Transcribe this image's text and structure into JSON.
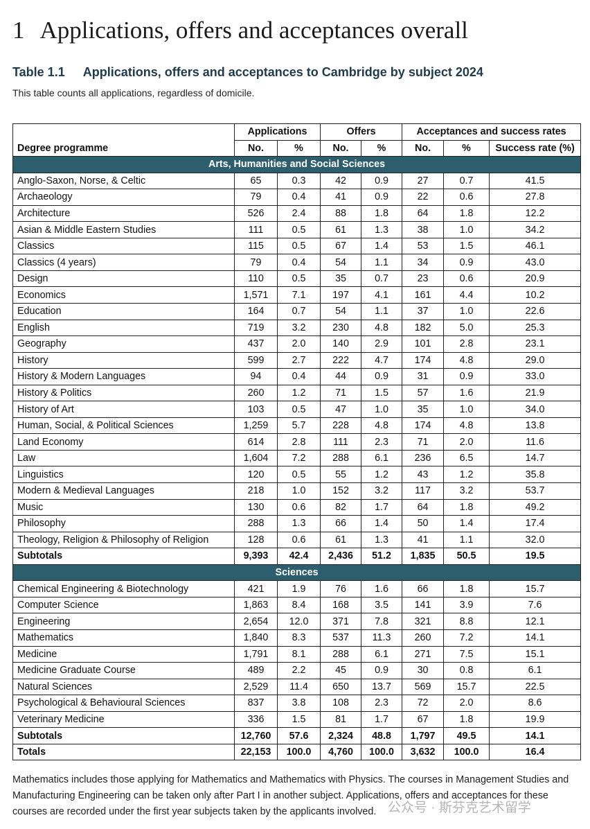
{
  "heading": {
    "number": "1",
    "text": "Applications, offers and acceptances overall"
  },
  "table_title": {
    "number": "Table 1.1",
    "text": "Applications, offers and acceptances to Cambridge by subject 2024"
  },
  "subtitle": "This table counts all applications, regardless of domicile.",
  "table": {
    "label_header": "Degree programme",
    "groups": [
      "Applications",
      "Offers",
      "Acceptances and success rates"
    ],
    "subheaders": [
      "No.",
      "%",
      "No.",
      "%",
      "No.",
      "%",
      "Success rate (%)"
    ],
    "sections": [
      {
        "name": "Arts, Humanities and Social Sciences",
        "rows": [
          [
            "Anglo-Saxon, Norse, & Celtic",
            "65",
            "0.3",
            "42",
            "0.9",
            "27",
            "0.7",
            "41.5"
          ],
          [
            "Archaeology",
            "79",
            "0.4",
            "41",
            "0.9",
            "22",
            "0.6",
            "27.8"
          ],
          [
            "Architecture",
            "526",
            "2.4",
            "88",
            "1.8",
            "64",
            "1.8",
            "12.2"
          ],
          [
            "Asian & Middle Eastern Studies",
            "111",
            "0.5",
            "61",
            "1.3",
            "38",
            "1.0",
            "34.2"
          ],
          [
            "Classics",
            "115",
            "0.5",
            "67",
            "1.4",
            "53",
            "1.5",
            "46.1"
          ],
          [
            "Classics (4 years)",
            "79",
            "0.4",
            "54",
            "1.1",
            "34",
            "0.9",
            "43.0"
          ],
          [
            "Design",
            "110",
            "0.5",
            "35",
            "0.7",
            "23",
            "0.6",
            "20.9"
          ],
          [
            "Economics",
            "1,571",
            "7.1",
            "197",
            "4.1",
            "161",
            "4.4",
            "10.2"
          ],
          [
            "Education",
            "164",
            "0.7",
            "54",
            "1.1",
            "37",
            "1.0",
            "22.6"
          ],
          [
            "English",
            "719",
            "3.2",
            "230",
            "4.8",
            "182",
            "5.0",
            "25.3"
          ],
          [
            "Geography",
            "437",
            "2.0",
            "140",
            "2.9",
            "101",
            "2.8",
            "23.1"
          ],
          [
            "History",
            "599",
            "2.7",
            "222",
            "4.7",
            "174",
            "4.8",
            "29.0"
          ],
          [
            "History & Modern Languages",
            "94",
            "0.4",
            "44",
            "0.9",
            "31",
            "0.9",
            "33.0"
          ],
          [
            "History & Politics",
            "260",
            "1.2",
            "71",
            "1.5",
            "57",
            "1.6",
            "21.9"
          ],
          [
            "History of Art",
            "103",
            "0.5",
            "47",
            "1.0",
            "35",
            "1.0",
            "34.0"
          ],
          [
            "Human, Social, & Political Sciences",
            "1,259",
            "5.7",
            "228",
            "4.8",
            "174",
            "4.8",
            "13.8"
          ],
          [
            "Land Economy",
            "614",
            "2.8",
            "111",
            "2.3",
            "71",
            "2.0",
            "11.6"
          ],
          [
            "Law",
            "1,604",
            "7.2",
            "288",
            "6.1",
            "236",
            "6.5",
            "14.7"
          ],
          [
            "Linguistics",
            "120",
            "0.5",
            "55",
            "1.2",
            "43",
            "1.2",
            "35.8"
          ],
          [
            "Modern & Medieval Languages",
            "218",
            "1.0",
            "152",
            "3.2",
            "117",
            "3.2",
            "53.7"
          ],
          [
            "Music",
            "130",
            "0.6",
            "82",
            "1.7",
            "64",
            "1.8",
            "49.2"
          ],
          [
            "Philosophy",
            "288",
            "1.3",
            "66",
            "1.4",
            "50",
            "1.4",
            "17.4"
          ],
          [
            "Theology, Religion & Philosophy of Religion",
            "128",
            "0.6",
            "61",
            "1.3",
            "41",
            "1.1",
            "32.0"
          ]
        ],
        "subtotal": [
          "Subtotals",
          "9,393",
          "42.4",
          "2,436",
          "51.2",
          "1,835",
          "50.5",
          "19.5"
        ]
      },
      {
        "name": "Sciences",
        "rows": [
          [
            "Chemical Engineering & Biotechnology",
            "421",
            "1.9",
            "76",
            "1.6",
            "66",
            "1.8",
            "15.7"
          ],
          [
            "Computer Science",
            "1,863",
            "8.4",
            "168",
            "3.5",
            "141",
            "3.9",
            "7.6"
          ],
          [
            "Engineering",
            "2,654",
            "12.0",
            "371",
            "7.8",
            "321",
            "8.8",
            "12.1"
          ],
          [
            "Mathematics",
            "1,840",
            "8.3",
            "537",
            "11.3",
            "260",
            "7.2",
            "14.1"
          ],
          [
            "Medicine",
            "1,791",
            "8.1",
            "288",
            "6.1",
            "271",
            "7.5",
            "15.1"
          ],
          [
            "Medicine Graduate Course",
            "489",
            "2.2",
            "45",
            "0.9",
            "30",
            "0.8",
            "6.1"
          ],
          [
            "Natural Sciences",
            "2,529",
            "11.4",
            "650",
            "13.7",
            "569",
            "15.7",
            "22.5"
          ],
          [
            "Psychological & Behavioural Sciences",
            "837",
            "3.8",
            "108",
            "2.3",
            "72",
            "2.0",
            "8.6"
          ],
          [
            "Veterinary Medicine",
            "336",
            "1.5",
            "81",
            "1.7",
            "67",
            "1.8",
            "19.9"
          ]
        ],
        "subtotal": [
          "Subtotals",
          "12,760",
          "57.6",
          "2,324",
          "48.8",
          "1,797",
          "49.5",
          "14.1"
        ]
      }
    ],
    "totals": [
      "Totals",
      "22,153",
      "100.0",
      "4,760",
      "100.0",
      "3,632",
      "100.0",
      "16.4"
    ]
  },
  "footnote": "Mathematics includes those applying for Mathematics and Mathematics with Physics. The courses in Management Studies and Manufacturing Engineering can be taken only after Part I in another subject. Applications, offers and acceptances for these courses are recorded under the first year subjects taken by the applicants involved.",
  "watermark": "公众号 · 斯芬克艺术留学"
}
